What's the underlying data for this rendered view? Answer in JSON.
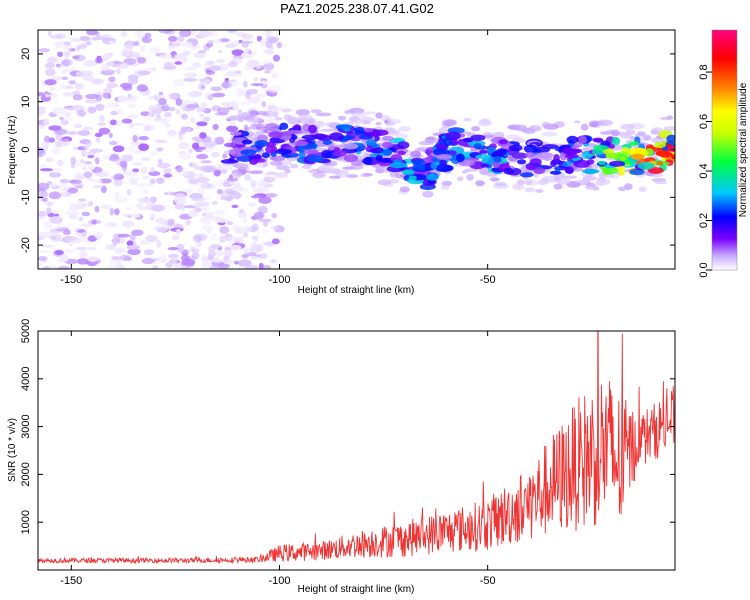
{
  "title": "PAZ1.2025.238.07.41.G02",
  "chart_data": [
    {
      "type": "heatmap",
      "title": "PAZ1.2025.238.07.41.G02",
      "xlabel": "Height of straight line (km)",
      "ylabel": "Frequency (Hz)",
      "xlim": [
        -158,
        -5
      ],
      "ylim": [
        -25,
        25
      ],
      "x_ticks": [
        -150,
        -100,
        -50
      ],
      "y_ticks": [
        -20,
        -10,
        0,
        10,
        20
      ],
      "colorbar": {
        "label": "Normalized spectral amplitude",
        "range": [
          0,
          0.97
        ],
        "ticks": [
          0.0,
          0.2,
          0.4,
          0.6,
          0.8
        ],
        "colormap": [
          "#ffffff",
          "#c8a8ff",
          "#7a00ff",
          "#0000ff",
          "#00c8ff",
          "#00ff40",
          "#c8ff00",
          "#ffff00",
          "#ff8000",
          "#ff0000",
          "#ff0080"
        ]
      },
      "ridge": [
        {
          "x": -110,
          "y": 0.5,
          "amp": 0.3
        },
        {
          "x": -100,
          "y": 1.5,
          "amp": 0.3
        },
        {
          "x": -90,
          "y": 1.0,
          "amp": 0.35
        },
        {
          "x": -80,
          "y": 1.5,
          "amp": 0.35
        },
        {
          "x": -72,
          "y": -1.0,
          "amp": 0.4
        },
        {
          "x": -65,
          "y": -5.0,
          "amp": 0.35
        },
        {
          "x": -58,
          "y": 1.0,
          "amp": 0.35
        },
        {
          "x": -48,
          "y": -1.0,
          "amp": 0.4
        },
        {
          "x": -40,
          "y": -2.0,
          "amp": 0.3
        },
        {
          "x": -30,
          "y": -1.0,
          "amp": 0.35
        },
        {
          "x": -20,
          "y": -1.5,
          "amp": 0.6
        },
        {
          "x": -12,
          "y": -1.5,
          "amp": 0.8
        },
        {
          "x": -6,
          "y": 0.0,
          "amp": 0.9
        }
      ]
    },
    {
      "type": "line",
      "xlabel": "Height of straight line (km)",
      "ylabel": "SNR (10 * v/v)",
      "xlim": [
        -158,
        -5
      ],
      "ylim": [
        0,
        5000
      ],
      "x_ticks": [
        -150,
        -100,
        -50
      ],
      "y_ticks": [
        1000,
        2000,
        3000,
        4000,
        5000
      ],
      "color": "#ee3333",
      "envelope": [
        {
          "x": -158,
          "y": 200,
          "spread": 50
        },
        {
          "x": -140,
          "y": 200,
          "spread": 50
        },
        {
          "x": -120,
          "y": 200,
          "spread": 50
        },
        {
          "x": -105,
          "y": 220,
          "spread": 60
        },
        {
          "x": -100,
          "y": 350,
          "spread": 180
        },
        {
          "x": -90,
          "y": 400,
          "spread": 200
        },
        {
          "x": -80,
          "y": 550,
          "spread": 300
        },
        {
          "x": -70,
          "y": 650,
          "spread": 380
        },
        {
          "x": -60,
          "y": 800,
          "spread": 450
        },
        {
          "x": -50,
          "y": 950,
          "spread": 550
        },
        {
          "x": -40,
          "y": 1400,
          "spread": 800
        },
        {
          "x": -30,
          "y": 2100,
          "spread": 1300
        },
        {
          "x": -22,
          "y": 2600,
          "spread": 1700
        },
        {
          "x": -18,
          "y": 2200,
          "spread": 1500
        },
        {
          "x": -14,
          "y": 2700,
          "spread": 600
        },
        {
          "x": -10,
          "y": 2900,
          "spread": 600
        },
        {
          "x": -5,
          "y": 3200,
          "spread": 700
        }
      ]
    }
  ]
}
